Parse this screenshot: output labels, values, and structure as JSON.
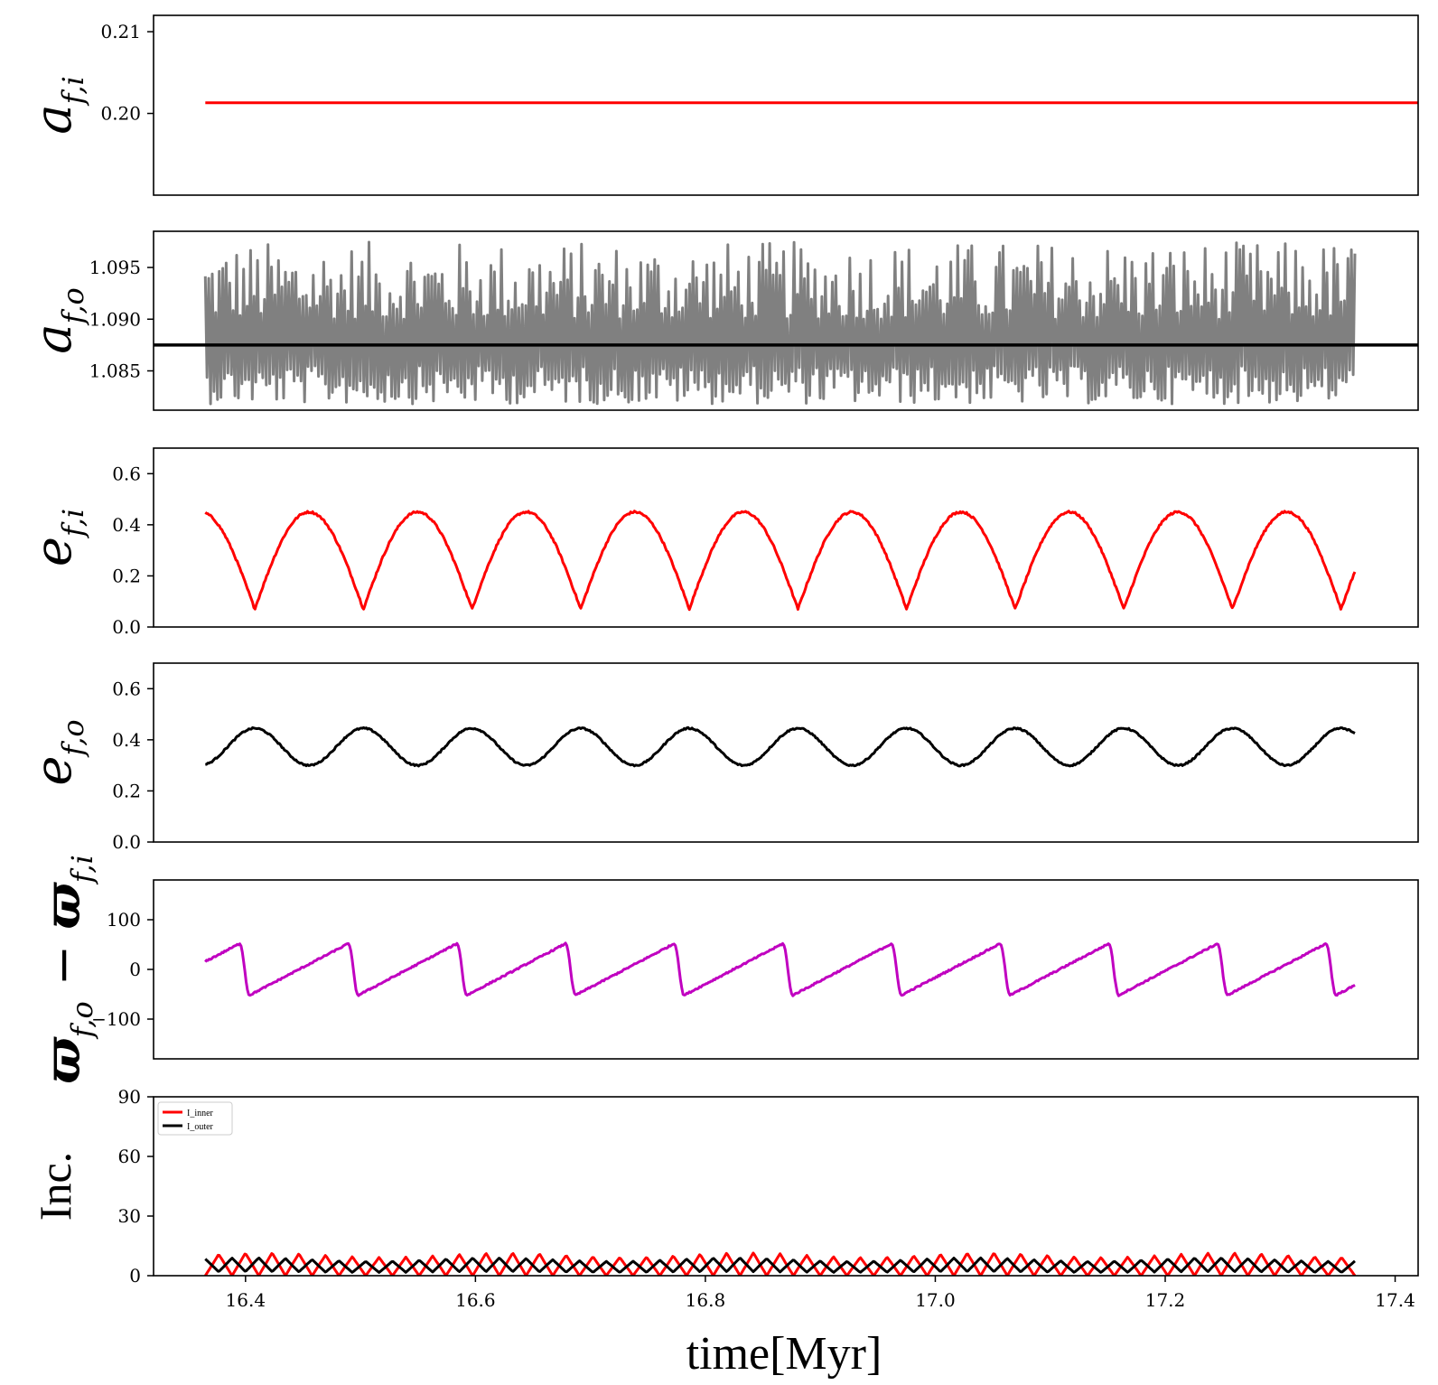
{
  "figure": {
    "xlabel": "time[Myr]",
    "xticks": [
      "16.4",
      "16.6",
      "16.8",
      "17.0",
      "17.2",
      "17.4"
    ]
  },
  "chart_data": [
    {
      "type": "line",
      "ylabel": "a_f,i",
      "ylim": [
        0.19,
        0.212
      ],
      "yticks": [
        "0.20",
        "0.21"
      ],
      "ytick_values": [
        0.2,
        0.21
      ],
      "xlim": [
        16.32,
        17.42
      ],
      "series": [
        {
          "color": "#ff0000",
          "x": [
            16.365,
            17.42
          ],
          "y": [
            0.2013,
            0.2013
          ]
        }
      ]
    },
    {
      "type": "line",
      "ylabel": "a_f,o",
      "ylim": [
        1.0812,
        1.0985
      ],
      "yticks": [
        "1.085",
        "1.090",
        "1.095"
      ],
      "ytick_values": [
        1.085,
        1.09,
        1.095
      ],
      "xlim": [
        16.32,
        17.42
      ],
      "series": [
        {
          "color": "#808080",
          "kind": "oscillation",
          "x_range": [
            16.365,
            17.365
          ],
          "mean": 1.0875,
          "max": 1.0975,
          "min": 1.0818,
          "cycles": 330
        },
        {
          "color": "#000000",
          "x": [
            16.32,
            17.42
          ],
          "y": [
            1.0875,
            1.0875
          ]
        }
      ]
    },
    {
      "type": "line",
      "ylabel": "e_f,i",
      "ylim": [
        0.0,
        0.7
      ],
      "yticks": [
        "0.0",
        "0.2",
        "0.4",
        "0.6"
      ],
      "ytick_values": [
        0.0,
        0.2,
        0.4,
        0.6
      ],
      "xlim": [
        16.32,
        17.42
      ],
      "series": [
        {
          "color": "#ff0000",
          "kind": "cusp",
          "x_range": [
            16.365,
            17.365
          ],
          "min": 0.07,
          "max": 0.45,
          "period": 0.0945,
          "first_min": 16.408,
          "start_value": 0.44,
          "end_value": 0.19
        }
      ]
    },
    {
      "type": "line",
      "ylabel": "e_f,o",
      "ylim": [
        0.0,
        0.7
      ],
      "yticks": [
        "0.0",
        "0.2",
        "0.4",
        "0.6"
      ],
      "ytick_values": [
        0.0,
        0.2,
        0.4,
        0.6
      ],
      "xlim": [
        16.32,
        17.42
      ],
      "series": [
        {
          "color": "#000000",
          "kind": "sine",
          "x_range": [
            16.365,
            17.365
          ],
          "min": 0.3,
          "max": 0.445,
          "period": 0.0945,
          "first_max": 16.408
        }
      ]
    },
    {
      "type": "line",
      "ylabel": "ϖ_f,o − ϖ_f,i",
      "ylim": [
        -180,
        180
      ],
      "yticks": [
        "−100",
        "0",
        "100"
      ],
      "ytick_values": [
        -100,
        0,
        100
      ],
      "xlim": [
        16.32,
        17.42
      ],
      "series": [
        {
          "color": "#c000c0",
          "kind": "sawtooth",
          "x_range": [
            16.365,
            17.365
          ],
          "min": -52,
          "max": 52,
          "period": 0.0945,
          "first_drop": 16.395,
          "start_value": 8,
          "end_value": -52
        }
      ]
    },
    {
      "type": "line",
      "ylabel": "Inc.",
      "ylim": [
        0,
        90
      ],
      "yticks": [
        "0",
        "30",
        "60",
        "90"
      ],
      "ytick_values": [
        0,
        30,
        60,
        90
      ],
      "xlim": [
        16.32,
        17.42
      ],
      "series": [
        {
          "name": "I_inner",
          "color": "#ff0000",
          "kind": "zigzag",
          "x_range": [
            16.365,
            17.365
          ],
          "min": 0,
          "max": 11.5,
          "cycles": 43
        },
        {
          "name": "I_outer",
          "color": "#000000",
          "kind": "zigzag",
          "x_range": [
            16.365,
            17.365
          ],
          "min": 2,
          "max": 9,
          "cycles": 43,
          "phase": 0.5
        }
      ],
      "legend": "top-left"
    }
  ]
}
